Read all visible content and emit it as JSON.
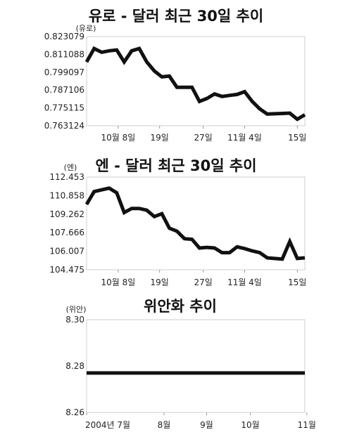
{
  "chart_data": [
    {
      "type": "line",
      "title": "유로 - 달러 최근 30일 추이",
      "ylabel": "(유로)",
      "ylim": [
        0.763124,
        0.823079
      ],
      "yticks": [
        "0.823079",
        "0.811088",
        "0.799097",
        "0.787106",
        "0.775115",
        "0.763124"
      ],
      "xticks": [
        {
          "label": "10월 8일",
          "i": 4.2
        },
        {
          "label": "19일",
          "i": 9.7
        },
        {
          "label": "27일",
          "i": 15.5
        },
        {
          "label": "11월 4일",
          "i": 21.0
        },
        {
          "label": "15일",
          "i": 28.0
        }
      ],
      "series": [
        {
          "color": "#111111",
          "values": [
            0.806,
            0.815,
            0.8125,
            0.8135,
            0.814,
            0.806,
            0.8135,
            0.815,
            0.806,
            0.8,
            0.796,
            0.7965,
            0.789,
            0.789,
            0.789,
            0.7795,
            0.7815,
            0.7845,
            0.7828,
            0.7835,
            0.7842,
            0.786,
            0.7795,
            0.7745,
            0.771,
            0.7712,
            0.7714,
            0.7716,
            0.7675,
            0.7705
          ]
        }
      ]
    },
    {
      "type": "line",
      "title": "엔 - 달러 최근 30일 추이",
      "ylabel": "(엔)",
      "ylim": [
        104.475,
        112.453
      ],
      "yticks": [
        "112.453",
        "110.858",
        "109.262",
        "107.666",
        "106.007",
        "104.475"
      ],
      "xticks": [
        {
          "label": "10월 8일",
          "i": 4.2
        },
        {
          "label": "19일",
          "i": 9.7
        },
        {
          "label": "27일",
          "i": 15.5
        },
        {
          "label": "11월 4일",
          "i": 21.0
        },
        {
          "label": "15일",
          "i": 28.0
        }
      ],
      "series": [
        {
          "color": "#111111",
          "values": [
            110.1,
            111.2,
            111.35,
            111.5,
            111.1,
            109.4,
            109.75,
            109.75,
            109.6,
            109.05,
            109.3,
            108.05,
            107.8,
            107.15,
            107.1,
            106.35,
            106.4,
            106.35,
            105.95,
            105.95,
            106.45,
            106.3,
            106.1,
            105.95,
            105.5,
            105.45,
            105.4,
            106.9,
            105.45,
            105.5
          ]
        }
      ]
    },
    {
      "type": "line",
      "title": "위안화 추이",
      "ylabel": "(위안)",
      "ylim": [
        8.26,
        8.3
      ],
      "yticks": [
        "8.30",
        "8.28",
        "8.26"
      ],
      "xticks": [
        {
          "label": "2004년 7월",
          "i": 0.0
        },
        {
          "label": "8월",
          "i": 3.9
        },
        {
          "label": "9월",
          "i": 6.05
        },
        {
          "label": "10월",
          "i": 8.25
        },
        {
          "label": "11월",
          "i": 11.1
        }
      ],
      "series": [
        {
          "color": "#111111",
          "values": [
            8.277,
            8.277,
            8.277,
            8.277,
            8.277,
            8.277,
            8.277,
            8.277,
            8.277,
            8.277,
            8.277,
            8.277
          ]
        }
      ]
    }
  ]
}
